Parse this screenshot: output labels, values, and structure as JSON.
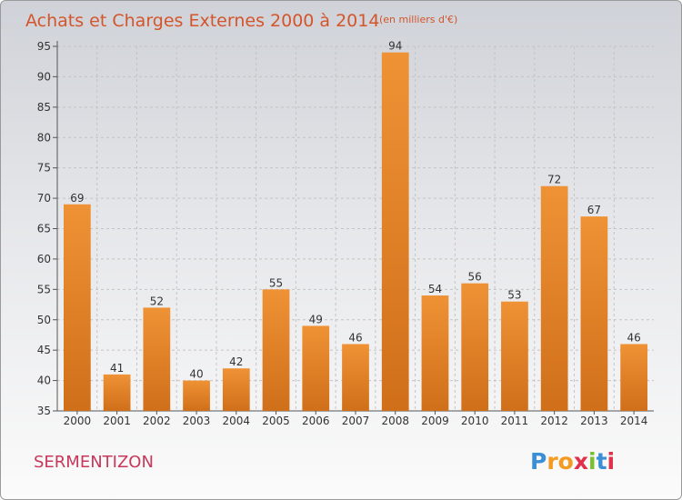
{
  "chart_data": {
    "type": "bar",
    "title": "Achats et Charges Externes 2000 à 2014",
    "subtitle": "(en milliers d'€)",
    "categories": [
      "2000",
      "2001",
      "2002",
      "2003",
      "2004",
      "2005",
      "2006",
      "2007",
      "2008",
      "2009",
      "2010",
      "2011",
      "2012",
      "2013",
      "2014"
    ],
    "values": [
      69,
      41,
      52,
      40,
      42,
      55,
      49,
      46,
      94,
      54,
      56,
      53,
      72,
      67,
      46
    ],
    "ylim": [
      35,
      95
    ],
    "yticks": [
      35,
      40,
      45,
      50,
      55,
      60,
      65,
      70,
      75,
      80,
      85,
      90,
      95
    ],
    "grid": true,
    "legend": "none",
    "bar_color": "#ef9235",
    "bar_color_dark": "#d06f1a"
  },
  "footer": {
    "place_name": "SERMENTIZON",
    "logo_letters": [
      "P",
      "r",
      "o",
      "x",
      "i",
      "t",
      "i"
    ],
    "logo_colors": [
      "#3b8fd6",
      "#f39a1f",
      "#f39a1f",
      "#e0304a",
      "#7bbf2a",
      "#3b8fd6",
      "#e0304a"
    ]
  }
}
